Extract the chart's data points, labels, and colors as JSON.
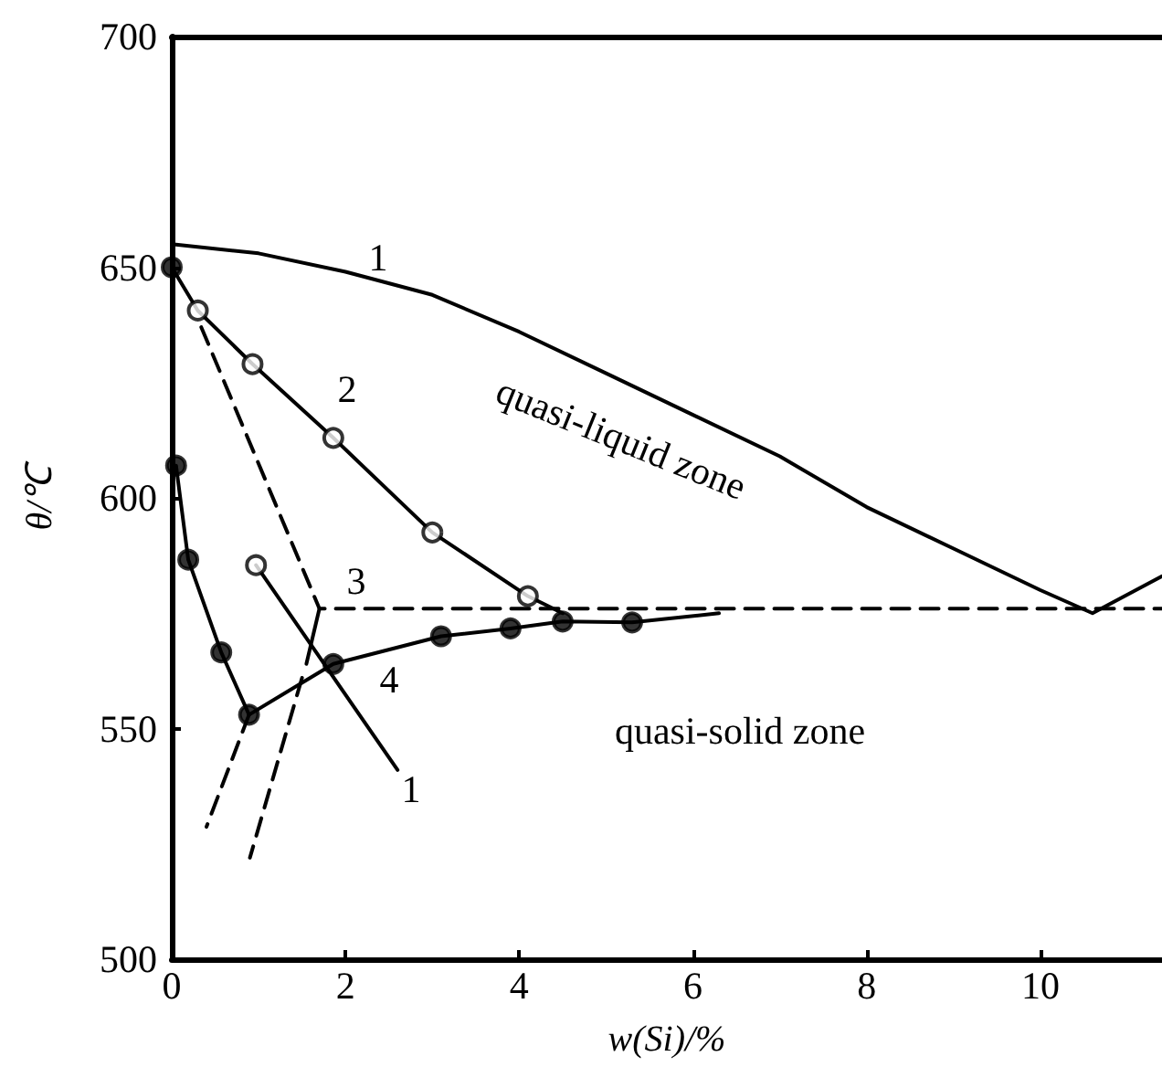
{
  "chart_data": {
    "type": "line",
    "xlabel": "w(Si)/%",
    "ylabel": "θ/℃",
    "xlim": [
      0,
      11.4
    ],
    "ylim": [
      500,
      700
    ],
    "xticks": [
      0,
      2,
      4,
      6,
      8,
      10
    ],
    "yticks": [
      500,
      550,
      600,
      650,
      700
    ],
    "grid": false,
    "marker": "none",
    "series": [
      {
        "color": "#000000",
        "line_style": "solid",
        "x": [
          0,
          1,
          2,
          3,
          4,
          5,
          6,
          7,
          8,
          9,
          10,
          10.6,
          11.4
        ],
        "values": [
          655,
          653,
          649,
          644,
          636,
          627,
          618,
          609,
          598,
          589,
          580,
          575,
          583
        ]
      },
      {
        "color": "#000000",
        "line_style": "solid",
        "x": [
          0,
          0.3,
          0.93,
          1.86,
          3.0,
          4.1,
          4.5
        ],
        "values": [
          650,
          640.6,
          629,
          613,
          592.5,
          578.7,
          575
        ]
      },
      {
        "color": "#000000",
        "line_style": "dashed",
        "x": [
          0.34,
          1.7,
          11.4
        ],
        "values": [
          637,
          576,
          576
        ]
      },
      {
        "color": "#000000",
        "line_style": "solid",
        "x": [
          1.7,
          1.55
        ],
        "values": [
          576,
          564
        ]
      },
      {
        "color": "#000000",
        "line_style": "dashed",
        "x": [
          1.5,
          0.9
        ],
        "values": [
          561,
          522
        ]
      },
      {
        "color": "#000000",
        "line_style": "solid",
        "x": [
          0.97,
          2.6
        ],
        "values": [
          585.4,
          541
        ]
      },
      {
        "color": "#000000",
        "line_style": "solid",
        "x": [
          0.05,
          0.19,
          0.57,
          0.89
        ],
        "values": [
          607,
          586.6,
          566.5,
          553
        ]
      },
      {
        "color": "#000000",
        "line_style": "solid",
        "x": [
          0.89,
          1.86,
          3.1,
          3.9,
          4.5,
          5.3,
          6.3
        ],
        "values": [
          553,
          564,
          570,
          571.7,
          573.2,
          573,
          575
        ]
      },
      {
        "color": "#000000",
        "line_style": "dashed",
        "x": [
          0.89,
          0.4
        ],
        "values": [
          553,
          528.7
        ]
      },
      {
        "type": "scatter",
        "marker": "circle",
        "color": "#ffffff",
        "x": [
          0.3,
          0.93,
          1.86,
          3.0,
          4.1,
          0.97
        ],
        "values": [
          640.6,
          629,
          613,
          592.5,
          578.7,
          585.4
        ]
      },
      {
        "type": "scatter",
        "marker": "circle",
        "color": "#000000",
        "x": [
          0,
          0.05,
          0.19,
          0.57,
          0.89,
          1.86,
          3.1,
          3.9,
          4.5,
          5.3
        ],
        "values": [
          650,
          607,
          586.6,
          566.5,
          553,
          564,
          570,
          571.7,
          573.2,
          573
        ]
      }
    ],
    "annotations": [
      "1",
      "2",
      "3",
      "4",
      "1",
      "quasi-liquid zone",
      "quasi-solid zone"
    ]
  }
}
